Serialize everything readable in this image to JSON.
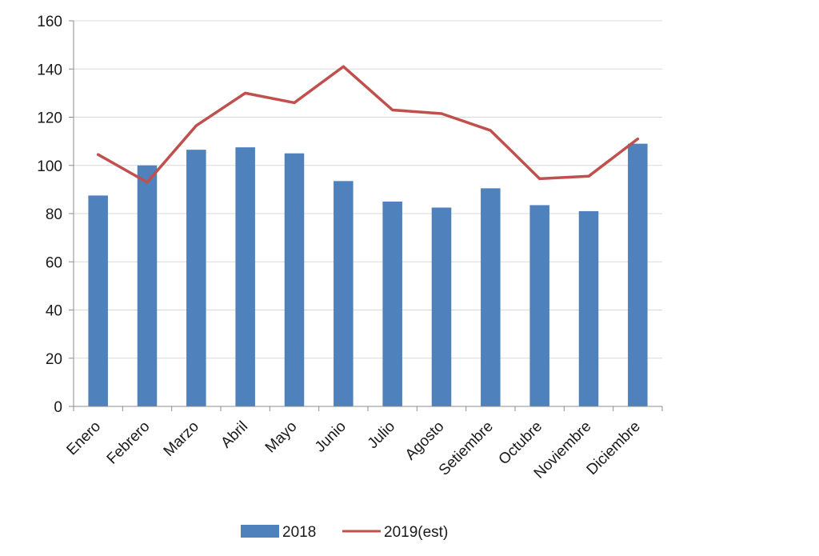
{
  "chart_data": {
    "type": "bar",
    "categories": [
      "Enero",
      "Febrero",
      "Marzo",
      "Abril",
      "Mayo",
      "Junio",
      "Julio",
      "Agosto",
      "Setiembre",
      "Octubre",
      "Noviembre",
      "Diciembre"
    ],
    "series": [
      {
        "name": "2018",
        "type": "bar",
        "color": "#4f81bd",
        "values": [
          87.5,
          100,
          106.5,
          107.5,
          105,
          93.5,
          85,
          82.5,
          90.5,
          83.5,
          81,
          109
        ]
      },
      {
        "name": "2019(est)",
        "type": "line",
        "color": "#c0504d",
        "values": [
          104.5,
          93,
          116.5,
          130,
          126,
          141,
          123,
          121.5,
          114.5,
          94.5,
          95.5,
          111
        ]
      }
    ],
    "ylim": [
      0,
      160
    ],
    "yticks": [
      0,
      20,
      40,
      60,
      80,
      100,
      120,
      140,
      160
    ],
    "grid": true,
    "legend": "bottom",
    "xlabel": "",
    "ylabel": "",
    "title": ""
  }
}
